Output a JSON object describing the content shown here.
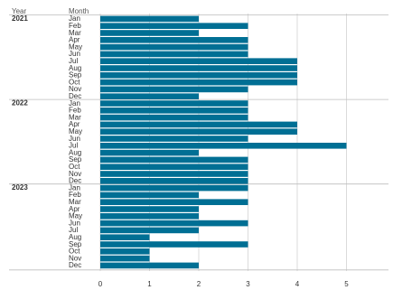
{
  "headers": {
    "year": "Year",
    "month": "Month"
  },
  "colors": {
    "bar": "#006f94",
    "grid": "#cccccc",
    "separator": "#bdbdbd"
  },
  "chart_data": {
    "type": "bar",
    "orientation": "horizontal",
    "xlabel": "",
    "ylabel": "",
    "xlim": [
      0,
      6
    ],
    "xticks": [
      0,
      1,
      2,
      3,
      4,
      5,
      6
    ],
    "grid": "vertical",
    "groups": [
      {
        "year": "2021",
        "months": [
          "Jan",
          "Feb",
          "Mar",
          "Apr",
          "May",
          "Jun",
          "Jul",
          "Aug",
          "Sep",
          "Oct",
          "Nov",
          "Dec"
        ],
        "values": [
          2,
          3,
          2,
          3,
          3,
          3,
          4,
          4,
          4,
          4,
          3,
          2
        ]
      },
      {
        "year": "2022",
        "months": [
          "Jan",
          "Feb",
          "Mar",
          "Apr",
          "May",
          "Jun",
          "Jul",
          "Aug",
          "Sep",
          "Oct",
          "Nov",
          "Dec"
        ],
        "values": [
          3,
          3,
          3,
          4,
          4,
          3,
          5,
          2,
          3,
          3,
          3,
          3
        ]
      },
      {
        "year": "2023",
        "months": [
          "Jan",
          "Feb",
          "Mar",
          "Apr",
          "May",
          "Jun",
          "Jul",
          "Aug",
          "Sep",
          "Oct",
          "Nov",
          "Dec"
        ],
        "values": [
          3,
          2,
          3,
          2,
          2,
          3,
          2,
          1,
          3,
          1,
          1,
          2
        ]
      }
    ]
  }
}
